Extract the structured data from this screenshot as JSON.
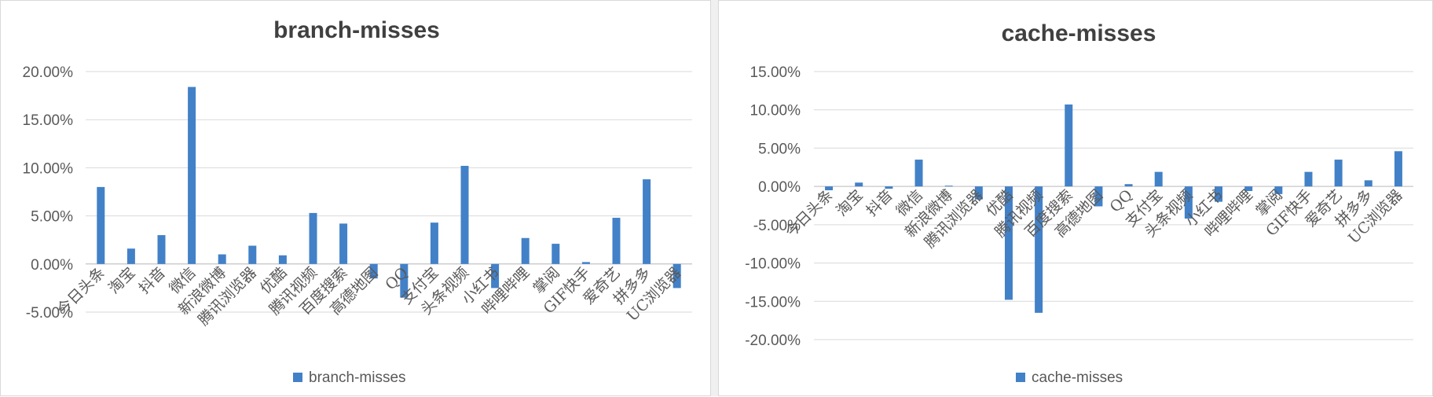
{
  "colors": {
    "bar": "#4281c7"
  },
  "chart_data": [
    {
      "type": "bar",
      "title": "branch-misses",
      "series": [
        {
          "name": "branch-misses",
          "values": [
            8.0,
            1.6,
            3.0,
            18.4,
            1.0,
            1.9,
            0.9,
            5.3,
            4.2,
            -1.5,
            -3.5,
            4.3,
            10.2,
            -2.5,
            2.7,
            2.1,
            0.2,
            4.8,
            8.8,
            -2.5
          ]
        }
      ],
      "categories": [
        "今日头条",
        "淘宝",
        "抖音",
        "微信",
        "新浪微博",
        "腾讯浏览器",
        "优酷",
        "腾讯视频",
        "百度搜索",
        "高德地图",
        "QQ",
        "支付宝",
        "头条视频",
        "小红书",
        "哔哩哔哩",
        "掌阅",
        "GIF快手",
        "爱奇艺",
        "拼多多",
        "UC浏览器"
      ],
      "ylim": [
        -5,
        20
      ],
      "yticks": [
        -5,
        0,
        5,
        10,
        15,
        20
      ],
      "ytick_labels": [
        "-5.00%",
        "0.00%",
        "5.00%",
        "10.00%",
        "15.00%",
        "20.00%"
      ],
      "legend": "bottom",
      "grid": true
    },
    {
      "type": "bar",
      "title": "cache-misses",
      "series": [
        {
          "name": "cache-misses",
          "values": [
            -0.5,
            0.5,
            -0.3,
            3.5,
            0.1,
            -1.7,
            -14.8,
            -16.5,
            10.7,
            -2.6,
            0.3,
            1.9,
            -4.2,
            -2.0,
            -0.6,
            -1.0,
            1.9,
            3.5,
            0.8,
            4.6
          ]
        }
      ],
      "categories": [
        "今日头条",
        "淘宝",
        "抖音",
        "微信",
        "新浪微博",
        "腾讯浏览器",
        "优酷",
        "腾讯视频",
        "百度搜索",
        "高德地图",
        "QQ",
        "支付宝",
        "头条视频",
        "小红书",
        "哔哩哔哩",
        "掌阅",
        "GIF快手",
        "爱奇艺",
        "拼多多",
        "UC浏览器"
      ],
      "ylim": [
        -20,
        15
      ],
      "yticks": [
        -20,
        -15,
        -10,
        -5,
        0,
        5,
        10,
        15
      ],
      "ytick_labels": [
        "-20.00%",
        "-15.00%",
        "-10.00%",
        "-5.00%",
        "0.00%",
        "5.00%",
        "10.00%",
        "15.00%"
      ],
      "legend": "bottom",
      "grid": true
    }
  ]
}
